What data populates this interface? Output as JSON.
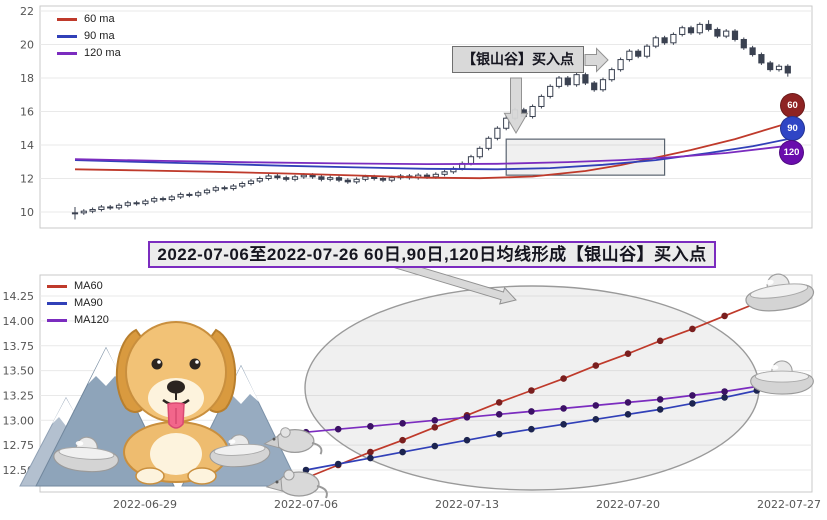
{
  "page": {
    "background": "#ffffff"
  },
  "banner": {
    "text": "2022-07-06至2022-07-26 60日,90日,120日均线形成【银山谷】买入点"
  },
  "decorations": {
    "items": [
      "golden-retriever-illustration",
      "snow-mountain-illustration",
      "silver-yuanbao-ingots",
      "silver-mouse-figurines"
    ]
  },
  "chart_data": [
    {
      "id": "kline_panel",
      "type": "bar",
      "subtype": "candlestick-with-moving-averages",
      "title": "",
      "xlabel": "",
      "ylabel": "",
      "y_ticks": [
        10,
        12,
        14,
        16,
        18,
        20,
        22
      ],
      "ylim": [
        9.3,
        22.3
      ],
      "grid": true,
      "legend_position": "upper left",
      "legend": [
        {
          "label": "60 ma",
          "color": "#bf3a2b"
        },
        {
          "label": "90 ma",
          "color": "#3140b8"
        },
        {
          "label": "120 ma",
          "color": "#7b2cbf"
        }
      ],
      "annotation": {
        "text": "【银山谷】买入点"
      },
      "right_badges": [
        {
          "label": "60",
          "color": "#8e2323"
        },
        {
          "label": "90",
          "color": "#2f45c5"
        },
        {
          "label": "120",
          "color": "#6a0dad"
        }
      ],
      "candles_ohlc": [
        [
          9.9,
          10.3,
          9.55,
          9.95
        ],
        [
          9.95,
          10.17,
          9.83,
          10.05
        ],
        [
          10.05,
          10.27,
          9.93,
          10.15
        ],
        [
          10.15,
          10.42,
          10.03,
          10.3
        ],
        [
          10.3,
          10.42,
          10.13,
          10.25
        ],
        [
          10.25,
          10.52,
          10.13,
          10.4
        ],
        [
          10.4,
          10.67,
          10.28,
          10.55
        ],
        [
          10.55,
          10.67,
          10.38,
          10.5
        ],
        [
          10.5,
          10.77,
          10.38,
          10.65
        ],
        [
          10.65,
          10.92,
          10.53,
          10.8
        ],
        [
          10.8,
          10.92,
          10.63,
          10.75
        ],
        [
          10.75,
          11.02,
          10.63,
          10.9
        ],
        [
          10.9,
          11.17,
          10.78,
          11.05
        ],
        [
          11.05,
          11.17,
          10.88,
          11.0
        ],
        [
          11.0,
          11.27,
          10.88,
          11.15
        ],
        [
          11.15,
          11.42,
          11.03,
          11.3
        ],
        [
          11.3,
          11.57,
          11.18,
          11.45
        ],
        [
          11.45,
          11.57,
          11.28,
          11.4
        ],
        [
          11.4,
          11.67,
          11.28,
          11.55
        ],
        [
          11.55,
          11.82,
          11.43,
          11.7
        ],
        [
          11.7,
          11.97,
          11.58,
          11.85
        ],
        [
          11.85,
          12.12,
          11.73,
          12.0
        ],
        [
          12.0,
          12.27,
          11.88,
          12.15
        ],
        [
          12.15,
          12.27,
          11.93,
          12.05
        ],
        [
          12.05,
          12.17,
          11.83,
          11.95
        ],
        [
          11.95,
          12.22,
          11.83,
          12.1
        ],
        [
          12.1,
          12.32,
          11.98,
          12.2
        ],
        [
          12.2,
          12.32,
          11.98,
          12.1
        ],
        [
          12.1,
          12.22,
          11.83,
          11.95
        ],
        [
          11.95,
          12.17,
          11.83,
          12.05
        ],
        [
          12.05,
          12.17,
          11.78,
          11.9
        ],
        [
          11.9,
          12.02,
          11.68,
          11.8
        ],
        [
          11.8,
          12.07,
          11.68,
          11.95
        ],
        [
          11.95,
          12.22,
          11.83,
          12.1
        ],
        [
          12.1,
          12.22,
          11.88,
          12.0
        ],
        [
          12.0,
          12.12,
          11.78,
          11.9
        ],
        [
          11.9,
          12.17,
          11.78,
          12.05
        ],
        [
          12.05,
          12.27,
          11.93,
          12.15
        ],
        [
          12.15,
          12.27,
          11.93,
          12.05
        ],
        [
          12.05,
          12.32,
          11.93,
          12.2
        ],
        [
          12.2,
          12.32,
          11.98,
          12.1
        ],
        [
          12.1,
          12.37,
          11.98,
          12.25
        ],
        [
          12.25,
          12.52,
          12.13,
          12.4
        ],
        [
          12.4,
          12.72,
          12.28,
          12.6
        ],
        [
          12.6,
          13.02,
          12.48,
          12.9
        ],
        [
          12.9,
          13.42,
          12.78,
          13.3
        ],
        [
          13.3,
          13.92,
          13.18,
          13.8
        ],
        [
          13.8,
          14.52,
          13.68,
          14.4
        ],
        [
          14.4,
          15.12,
          14.28,
          15.0
        ],
        [
          15.0,
          15.72,
          14.88,
          15.6
        ],
        [
          15.6,
          16.22,
          15.48,
          16.1
        ],
        [
          16.1,
          16.22,
          15.58,
          15.7
        ],
        [
          15.7,
          16.42,
          15.58,
          16.3
        ],
        [
          16.3,
          17.02,
          16.18,
          16.9
        ],
        [
          16.9,
          17.62,
          16.78,
          17.5
        ],
        [
          17.5,
          18.12,
          17.38,
          18.0
        ],
        [
          18.0,
          18.12,
          17.48,
          17.6
        ],
        [
          17.6,
          18.32,
          17.48,
          18.2
        ],
        [
          18.2,
          18.32,
          17.58,
          17.7
        ],
        [
          17.7,
          17.82,
          17.18,
          17.3
        ],
        [
          17.3,
          18.02,
          17.18,
          17.9
        ],
        [
          17.9,
          18.62,
          17.78,
          18.5
        ],
        [
          18.5,
          19.22,
          18.38,
          19.1
        ],
        [
          19.1,
          19.72,
          18.98,
          19.6
        ],
        [
          19.6,
          19.72,
          19.18,
          19.3
        ],
        [
          19.3,
          20.02,
          19.18,
          19.9
        ],
        [
          19.9,
          20.52,
          19.78,
          20.4
        ],
        [
          20.4,
          20.52,
          19.98,
          20.1
        ],
        [
          20.1,
          20.72,
          19.98,
          20.6
        ],
        [
          20.6,
          21.12,
          20.48,
          21.0
        ],
        [
          21.0,
          21.12,
          20.58,
          20.7
        ],
        [
          20.7,
          21.32,
          20.58,
          21.2
        ],
        [
          21.2,
          21.45,
          20.78,
          20.9
        ],
        [
          20.9,
          21.02,
          20.38,
          20.5
        ],
        [
          20.5,
          20.92,
          20.38,
          20.8
        ],
        [
          20.8,
          20.92,
          20.18,
          20.3
        ],
        [
          20.3,
          20.42,
          19.68,
          19.8
        ],
        [
          19.8,
          19.92,
          19.28,
          19.4
        ],
        [
          19.4,
          19.52,
          18.78,
          18.9
        ],
        [
          18.9,
          19.02,
          18.38,
          18.5
        ],
        [
          18.5,
          18.82,
          18.38,
          18.7
        ],
        [
          18.7,
          18.82,
          18.08,
          18.3
        ]
      ],
      "ma_series": [
        {
          "name": "60 ma",
          "color": "#bf3a2b",
          "points": [
            [
              0,
              12.55
            ],
            [
              8,
              12.48
            ],
            [
              16,
              12.4
            ],
            [
              24,
              12.3
            ],
            [
              32,
              12.18
            ],
            [
              40,
              12.05
            ],
            [
              46,
              12.02
            ],
            [
              52,
              12.12
            ],
            [
              58,
              12.45
            ],
            [
              62,
              12.8
            ],
            [
              66,
              13.25
            ],
            [
              70,
              13.7
            ],
            [
              75,
              14.35
            ],
            [
              81,
              15.3
            ]
          ]
        },
        {
          "name": "90 ma",
          "color": "#3140b8",
          "points": [
            [
              0,
              13.1
            ],
            [
              8,
              12.98
            ],
            [
              16,
              12.87
            ],
            [
              24,
              12.76
            ],
            [
              32,
              12.66
            ],
            [
              40,
              12.58
            ],
            [
              48,
              12.55
            ],
            [
              54,
              12.62
            ],
            [
              60,
              12.82
            ],
            [
              66,
              13.1
            ],
            [
              72,
              13.52
            ],
            [
              77,
              13.92
            ],
            [
              81,
              14.35
            ]
          ]
        },
        {
          "name": "120 ma",
          "color": "#7b2cbf",
          "points": [
            [
              0,
              13.15
            ],
            [
              10,
              13.05
            ],
            [
              20,
              12.97
            ],
            [
              30,
              12.9
            ],
            [
              40,
              12.86
            ],
            [
              48,
              12.88
            ],
            [
              56,
              12.98
            ],
            [
              62,
              13.1
            ],
            [
              68,
              13.28
            ],
            [
              74,
              13.52
            ],
            [
              81,
              13.95
            ]
          ]
        }
      ],
      "highlight_region": {
        "index_start": 49,
        "index_end": 67,
        "price_low": 12.2,
        "price_high": 14.35
      }
    },
    {
      "id": "ma_zoom_panel",
      "type": "line",
      "title": "",
      "xlabel": "",
      "ylabel": "",
      "x_ticks": [
        "2022-06-29",
        "2022-07-06",
        "2022-07-13",
        "2022-07-20",
        "2022-07-27"
      ],
      "y_ticks": [
        "12.50",
        "12.75",
        "13.00",
        "13.25",
        "13.50",
        "13.75",
        "14.00",
        "14.25"
      ],
      "ylim": [
        12.28,
        14.46
      ],
      "grid": true,
      "legend_position": "upper left",
      "dates": [
        "2022-07-06",
        "2022-07-07",
        "2022-07-08",
        "2022-07-11",
        "2022-07-12",
        "2022-07-13",
        "2022-07-14",
        "2022-07-15",
        "2022-07-18",
        "2022-07-19",
        "2022-07-20",
        "2022-07-21",
        "2022-07-22",
        "2022-07-25",
        "2022-07-26",
        "2022-07-27"
      ],
      "series": [
        {
          "name": "MA60",
          "color": "#bf3a2b",
          "marker_color": "#7a1f1f",
          "values": [
            12.42,
            12.55,
            12.68,
            12.8,
            12.93,
            13.05,
            13.18,
            13.3,
            13.42,
            13.55,
            13.67,
            13.8,
            13.92,
            14.05,
            14.18,
            14.3
          ]
        },
        {
          "name": "MA90",
          "color": "#3140b8",
          "marker_color": "#1c2450",
          "values": [
            12.5,
            12.56,
            12.62,
            12.68,
            12.74,
            12.8,
            12.86,
            12.91,
            12.96,
            13.01,
            13.06,
            13.11,
            13.17,
            13.23,
            13.3,
            13.37
          ]
        },
        {
          "name": "MA120",
          "color": "#7b2cbf",
          "marker_color": "#3c1166",
          "values": [
            12.88,
            12.91,
            12.94,
            12.97,
            13.0,
            13.03,
            13.06,
            13.09,
            13.12,
            13.15,
            13.18,
            13.21,
            13.25,
            13.29,
            13.34,
            13.4
          ]
        }
      ]
    }
  ]
}
